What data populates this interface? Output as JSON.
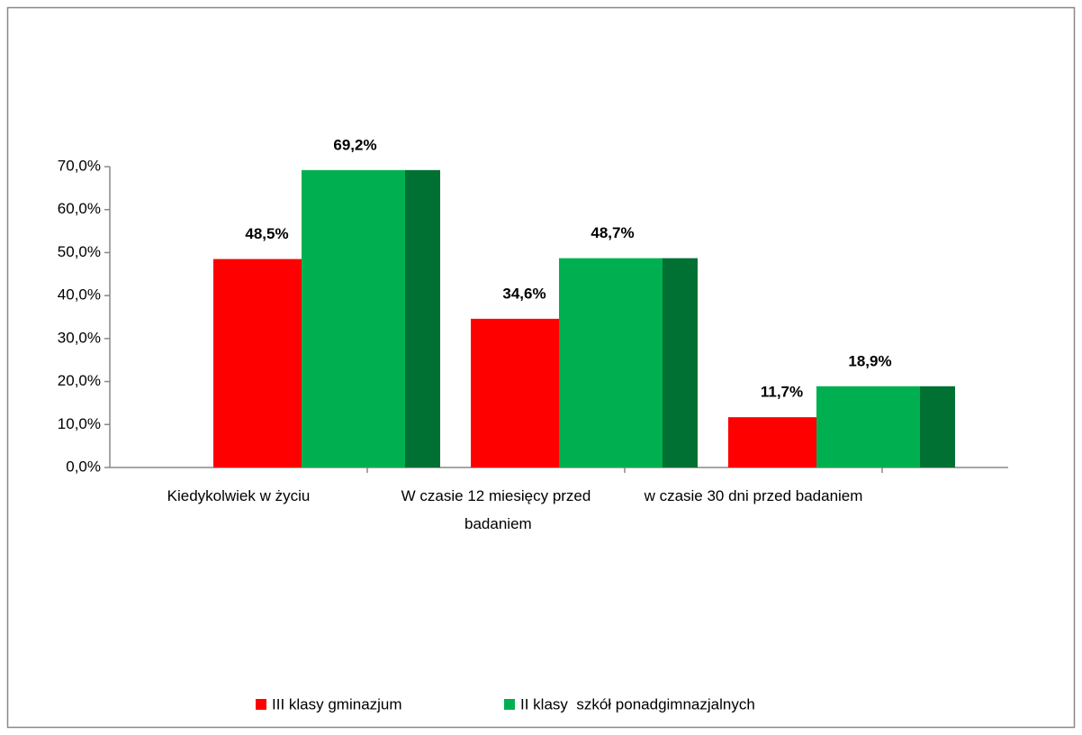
{
  "chart_data": {
    "type": "bar",
    "categories": [
      "Kiedykolwiek w życiu",
      "W czasie 12 miesięcy przed badaniem",
      "w czasie 30 dni przed badaniem"
    ],
    "series": [
      {
        "name": "III klasy gminazjum",
        "color": "#ff0000",
        "side_color": "#a50000",
        "values": [
          48.5,
          34.6,
          11.7
        ],
        "value_labels": [
          "48,5%",
          "34,6%",
          "11,7%"
        ]
      },
      {
        "name": "II klasy  szkół ponadgimnazjalnych",
        "color": "#00b050",
        "side_color": "#007033",
        "values": [
          69.2,
          48.7,
          18.9
        ],
        "value_labels": [
          "69,2%",
          "48,7%",
          "18,9%"
        ]
      }
    ],
    "ylim": [
      0,
      70
    ],
    "yticks": [
      {
        "value": 0,
        "label": "0,0%"
      },
      {
        "value": 10,
        "label": "10,0%"
      },
      {
        "value": 20,
        "label": "20,0%"
      },
      {
        "value": 30,
        "label": "30,0%"
      },
      {
        "value": 40,
        "label": "40,0%"
      },
      {
        "value": 50,
        "label": "50,0%"
      },
      {
        "value": 60,
        "label": "60,0%"
      },
      {
        "value": 70,
        "label": "70,0%"
      }
    ],
    "legend": "bottom"
  }
}
